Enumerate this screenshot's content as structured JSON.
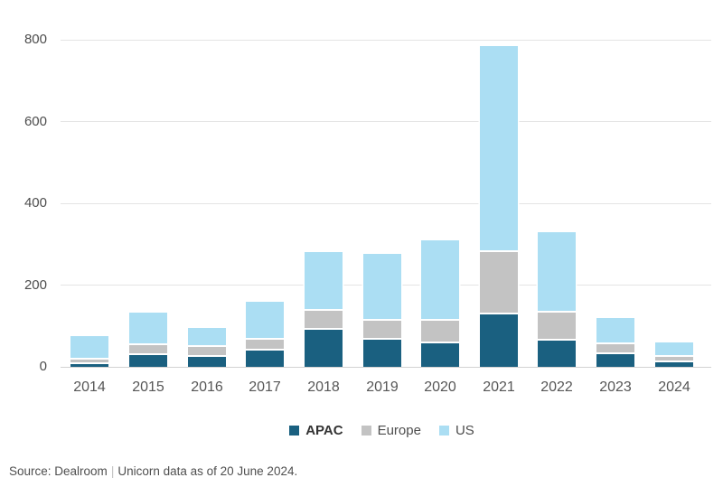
{
  "chart_data": {
    "type": "bar",
    "stacked": true,
    "title": "",
    "xlabel": "",
    "ylabel": "",
    "categories": [
      "2014",
      "2015",
      "2016",
      "2017",
      "2018",
      "2019",
      "2020",
      "2021",
      "2022",
      "2023",
      "2024"
    ],
    "series": [
      {
        "name": "APAC",
        "color": "#1a6080",
        "values": [
          10,
          34,
          28,
          44,
          95,
          70,
          62,
          133,
          68,
          36,
          16
        ]
      },
      {
        "name": "Europe",
        "color": "#c3c3c3",
        "values": [
          13,
          24,
          24,
          28,
          45,
          46,
          55,
          152,
          70,
          24,
          12
        ]
      },
      {
        "name": "US",
        "color": "#abdef3",
        "values": [
          52,
          75,
          42,
          88,
          140,
          160,
          193,
          500,
          192,
          60,
          32
        ]
      }
    ],
    "ylim": [
      0,
      800
    ],
    "yticks": [
      0,
      200,
      400,
      600,
      800
    ],
    "grid": true,
    "legend_position": "bottom"
  },
  "source": {
    "label": "Source: Dealroom",
    "separator": "|",
    "note": "Unicorn data as of 20 June 2024."
  }
}
